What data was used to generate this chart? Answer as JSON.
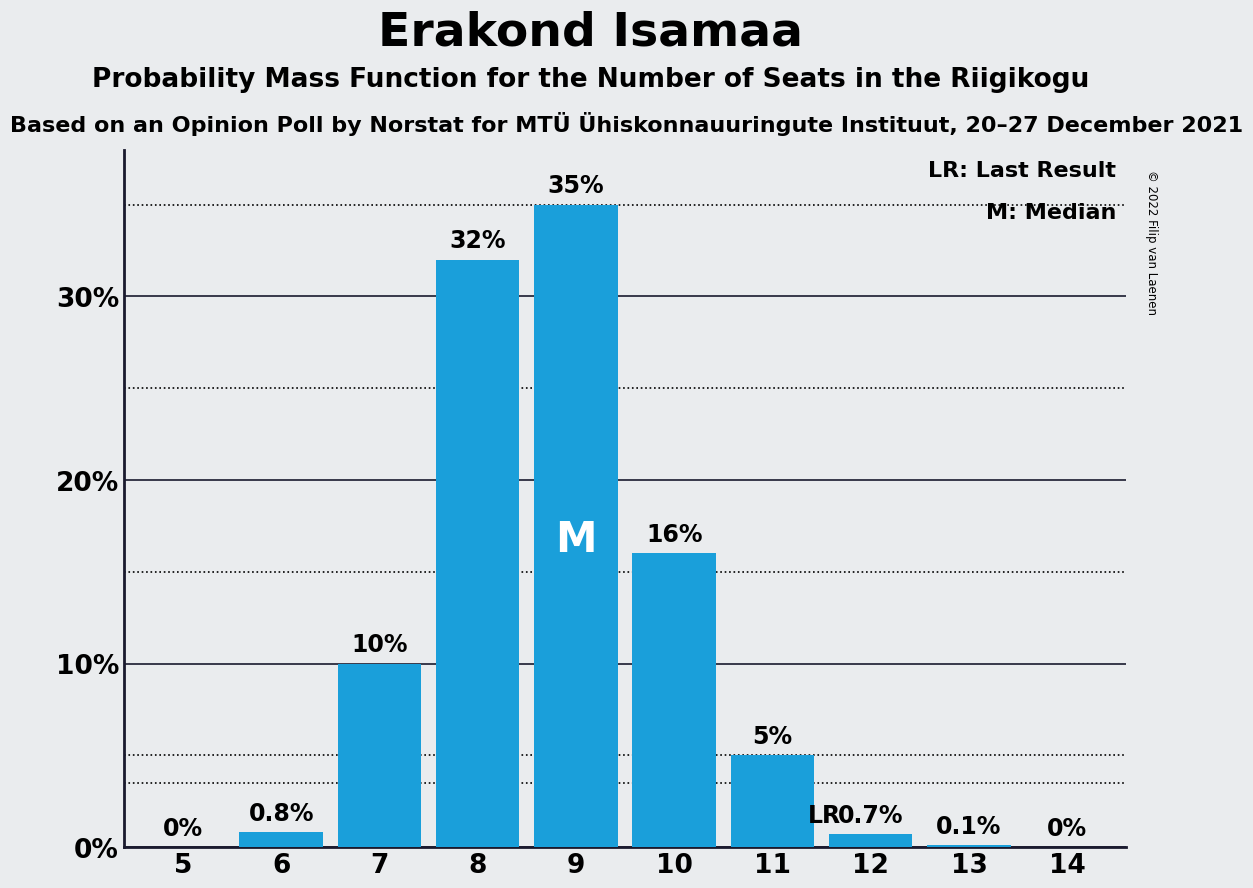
{
  "title": "Erakond Isamaa",
  "subtitle": "Probability Mass Function for the Number of Seats in the Riigikogu",
  "source_line": "Based on an Opinion Poll by Norstat for MTÜ Ühiskonnauuringute Instituut, 20–27 December 2021",
  "copyright": "© 2022 Filip van Laenen",
  "seats": [
    5,
    6,
    7,
    8,
    9,
    10,
    11,
    12,
    13,
    14
  ],
  "probabilities": [
    0.0,
    0.8,
    10.0,
    32.0,
    35.0,
    16.0,
    5.0,
    0.7,
    0.1,
    0.0
  ],
  "bar_color": "#1a9fda",
  "background_color": "#eaecee",
  "median_seat": 9,
  "lr_seat": 12,
  "lr_value": 3.5,
  "solid_lines": [
    0,
    10,
    20,
    30
  ],
  "dotted_lines": [
    5,
    15,
    25,
    35
  ],
  "ylim_max": 38,
  "bar_labels": [
    "0%",
    "0.8%",
    "10%",
    "32%",
    "35%",
    "16%",
    "5%",
    "0.7%",
    "0.1%",
    "0%"
  ],
  "ylabel_ticks": [
    0,
    10,
    20,
    30
  ],
  "title_fontsize": 34,
  "subtitle_fontsize": 19,
  "source_fontsize": 16,
  "label_fontsize": 17,
  "tick_fontsize": 19,
  "legend_fontsize": 16,
  "m_fontsize": 30
}
